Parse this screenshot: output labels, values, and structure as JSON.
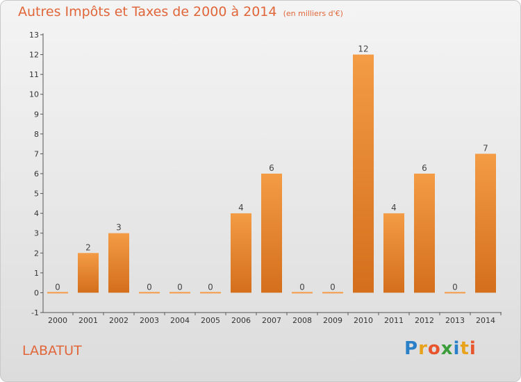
{
  "chart_data": {
    "type": "bar",
    "title": "Autres Impôts et Taxes de 2000 à 2014",
    "unit": "(en milliers d'€)",
    "categories": [
      "2000",
      "2001",
      "2002",
      "2003",
      "2004",
      "2005",
      "2006",
      "2007",
      "2008",
      "2009",
      "2010",
      "2011",
      "2012",
      "2013",
      "2014"
    ],
    "values": [
      0,
      2,
      3,
      0,
      0,
      0,
      4,
      6,
      0,
      0,
      12,
      4,
      6,
      0,
      7
    ],
    "ylim": [
      -1,
      13
    ],
    "yticks": [
      -1,
      0,
      1,
      2,
      3,
      4,
      5,
      6,
      7,
      8,
      9,
      10,
      11,
      12,
      13
    ],
    "grid": false,
    "bar_color": "#f39b45",
    "bar_color_dark": "#d46f1c"
  },
  "commune": "LABATUT",
  "logo": {
    "letters": [
      "P",
      "r",
      "o",
      "x",
      "i",
      "t",
      "i"
    ],
    "colors": [
      "#2a7fc9",
      "#e8a21c",
      "#e8552c",
      "#3b9e3b",
      "#2a7fc9",
      "#e8a21c",
      "#e8552c"
    ]
  }
}
